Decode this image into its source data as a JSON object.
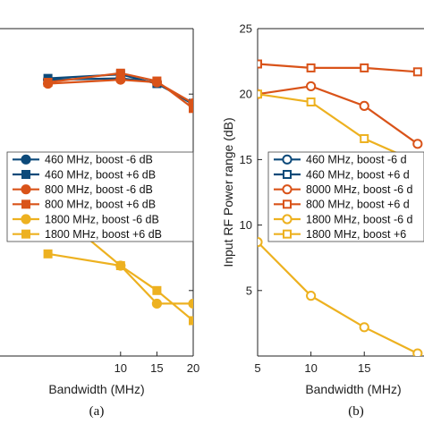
{
  "chart_data": [
    {
      "type": "line",
      "panel_label": "(a)",
      "xlabel": "Bandwidth (MHz)",
      "ylabel": "",
      "xlim": [
        0,
        20
      ],
      "ylim": [
        0,
        25
      ],
      "x_ticks": [
        10,
        15,
        20
      ],
      "x_tick_labels": [
        "10",
        "15",
        "20"
      ],
      "grid": false,
      "legend_position": "center-right",
      "series": [
        {
          "name": "460 MHz, boost -6 dB",
          "color": "#0d4a7a",
          "marker": "circle",
          "filled": true,
          "x": [
            0,
            10,
            15,
            20
          ],
          "y": [
            21.1,
            21.2,
            20.9,
            19.2
          ]
        },
        {
          "name": "460 MHz, boost +6 dB",
          "color": "#0d4a7a",
          "marker": "square",
          "filled": true,
          "x": [
            0,
            10,
            15,
            20
          ],
          "y": [
            21.2,
            21.5,
            20.8,
            19.3
          ]
        },
        {
          "name": "800 MHz, boost -6 dB",
          "color": "#d95319",
          "marker": "circle",
          "filled": true,
          "x": [
            0,
            10,
            15,
            20
          ],
          "y": [
            20.8,
            21.1,
            20.9,
            19.3
          ]
        },
        {
          "name": "800 MHz, boost +6 dB",
          "color": "#d95319",
          "marker": "square",
          "filled": true,
          "x": [
            0,
            10,
            15,
            20
          ],
          "y": [
            20.9,
            21.6,
            21.0,
            18.9
          ]
        },
        {
          "name": "1800 MHz, boost -6 dB",
          "color": "#edb120",
          "marker": "circle",
          "filled": true,
          "x": [
            0,
            10,
            15,
            20
          ],
          "y": [
            11.5,
            6.9,
            4.0,
            4.0
          ]
        },
        {
          "name": "1800 MHz, boost +6 dB",
          "color": "#edb120",
          "marker": "square",
          "filled": true,
          "x": [
            0,
            10,
            15,
            20
          ],
          "y": [
            7.8,
            6.9,
            5.0,
            2.7
          ]
        }
      ]
    },
    {
      "type": "line",
      "panel_label": "(b)",
      "xlabel": "Bandwidth (MHz)",
      "ylabel": "Input RF Power range (dB)",
      "xlim": [
        5,
        20
      ],
      "ylim": [
        0,
        25
      ],
      "x_ticks": [
        5,
        10,
        15
      ],
      "x_tick_labels": [
        "5",
        "10",
        "15"
      ],
      "y_ticks": [
        0,
        5,
        10,
        15,
        20,
        25
      ],
      "y_tick_labels": [
        "",
        "5",
        "10",
        "15",
        "20",
        "25"
      ],
      "grid": false,
      "legend_position": "center-right",
      "series": [
        {
          "name": "460 MHz, boost -6 d",
          "color": "#0d4a7a",
          "marker": "circle",
          "filled": false,
          "x": [],
          "y": []
        },
        {
          "name": "460 MHz, boost +6 d",
          "color": "#0d4a7a",
          "marker": "square",
          "filled": false,
          "x": [],
          "y": []
        },
        {
          "name": "8000 MHz, boost -6 d",
          "color": "#d95319",
          "marker": "circle",
          "filled": false,
          "x": [
            5,
            10,
            15,
            20
          ],
          "y": [
            20.0,
            20.6,
            19.1,
            16.2
          ]
        },
        {
          "name": "800 MHz, boost +6 d",
          "color": "#d95319",
          "marker": "square",
          "filled": false,
          "x": [
            5,
            10,
            15,
            20
          ],
          "y": [
            22.3,
            22.0,
            22.0,
            21.7
          ]
        },
        {
          "name": "1800 MHz, boost -6 d",
          "color": "#edb120",
          "marker": "circle",
          "filled": false,
          "x": [
            5,
            10,
            15,
            20
          ],
          "y": [
            8.7,
            4.6,
            2.2,
            0.2
          ]
        },
        {
          "name": "1800 MHz, boost +6",
          "color": "#edb120",
          "marker": "square",
          "filled": false,
          "x": [
            5,
            10,
            15,
            20
          ],
          "y": [
            20.0,
            19.4,
            16.6,
            14.8
          ]
        }
      ]
    }
  ]
}
